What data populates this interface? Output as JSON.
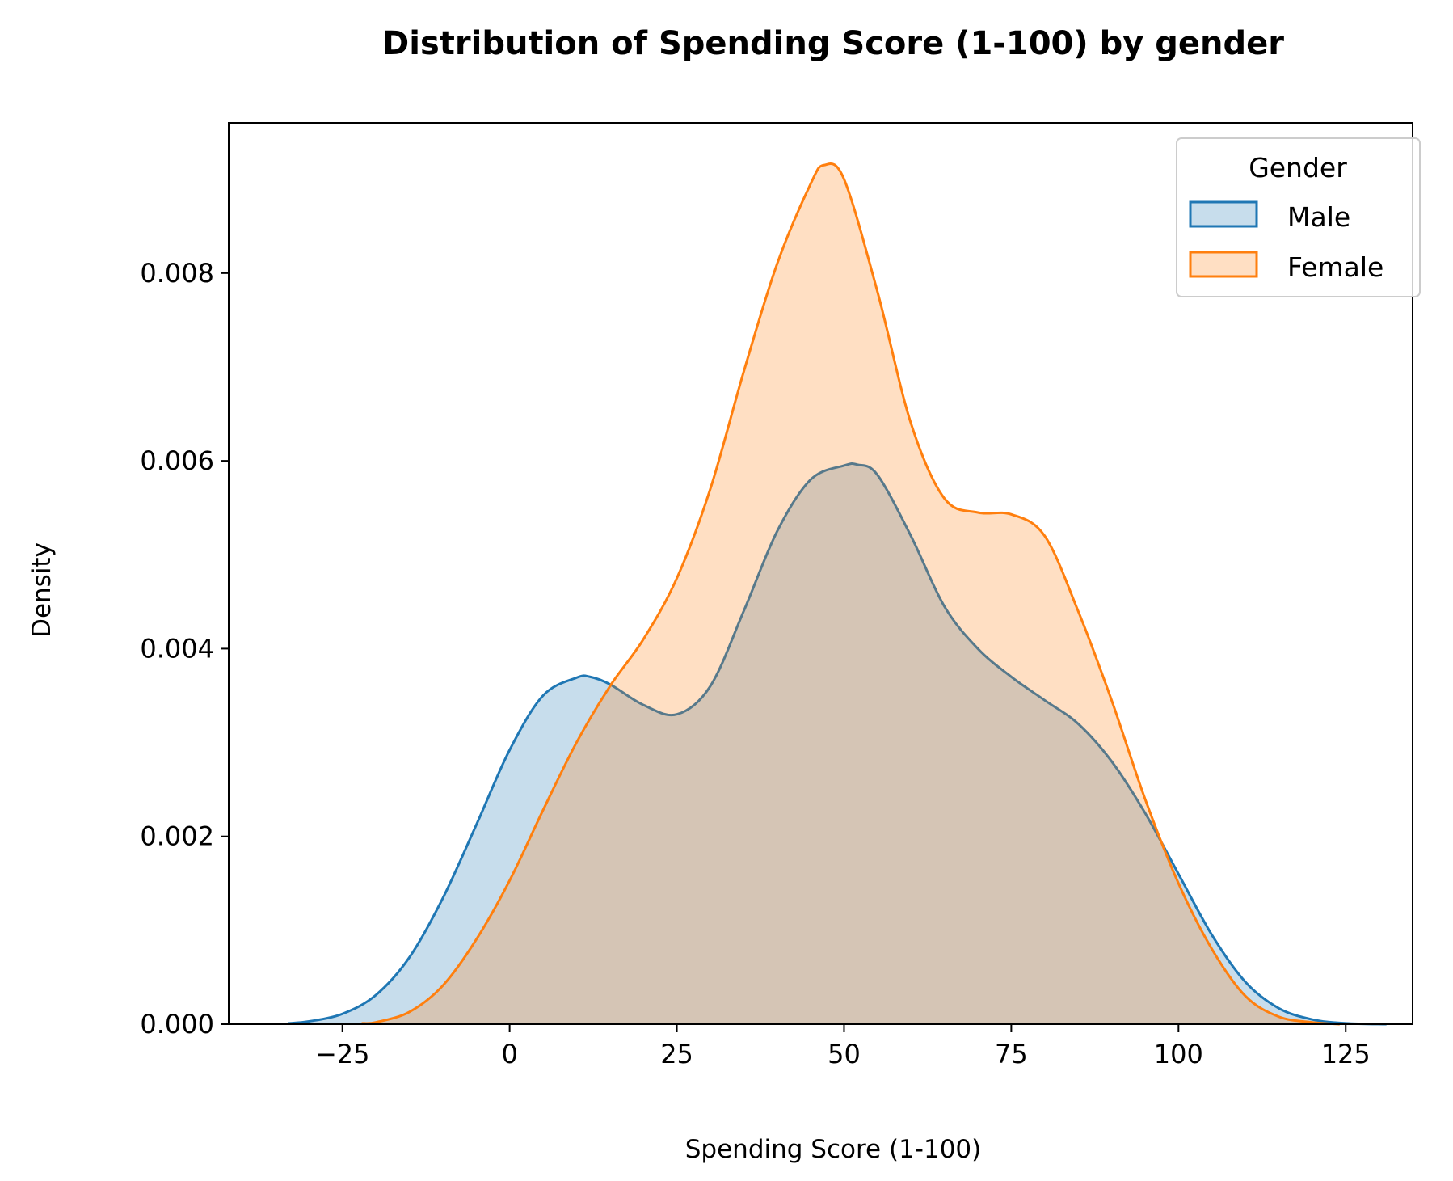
{
  "chart_data": {
    "type": "area",
    "title": "Distribution of Spending Score (1-100) by gender",
    "xlabel": "Spending Score (1-100)",
    "ylabel": "Density",
    "xlim": [
      -42,
      135
    ],
    "ylim": [
      0,
      0.0096
    ],
    "xticks": [
      -25,
      0,
      25,
      50,
      75,
      100,
      125
    ],
    "xtick_labels": [
      "−25",
      "0",
      "25",
      "50",
      "75",
      "100",
      "125"
    ],
    "yticks": [
      0,
      0.002,
      0.004,
      0.006,
      0.008
    ],
    "ytick_labels": [
      "0.000",
      "0.002",
      "0.004",
      "0.006",
      "0.008"
    ],
    "grid": false,
    "legend": {
      "title": "Gender",
      "position": "top-right"
    },
    "series": [
      {
        "name": "Male",
        "color": "#1f77b4",
        "fill_color": "#1f77b4",
        "fill_opacity": 0.25,
        "x": [
          -33,
          -30,
          -25,
          -20,
          -15,
          -10,
          -5,
          0,
          5,
          10,
          12,
          15,
          20,
          25,
          30,
          35,
          40,
          45,
          50,
          52,
          55,
          60,
          65,
          70,
          75,
          80,
          85,
          90,
          95,
          100,
          105,
          110,
          115,
          120,
          125,
          131
        ],
        "y": [
          1e-05,
          3e-05,
          0.00011,
          0.00031,
          0.00071,
          0.00134,
          0.00212,
          0.00292,
          0.0035,
          0.00369,
          0.0037,
          0.00362,
          0.0034,
          0.0033,
          0.0036,
          0.0044,
          0.00525,
          0.0058,
          0.00595,
          0.00596,
          0.00585,
          0.0052,
          0.00445,
          0.004,
          0.0037,
          0.00345,
          0.0032,
          0.0028,
          0.00225,
          0.0016,
          0.00095,
          0.00045,
          0.00017,
          5e-05,
          1e-05,
          0.0
        ]
      },
      {
        "name": "Female",
        "color": "#ff7f0e",
        "fill_color": "#ff7f0e",
        "fill_opacity": 0.25,
        "x": [
          -22,
          -20,
          -15,
          -10,
          -5,
          0,
          5,
          10,
          15,
          20,
          25,
          30,
          35,
          40,
          45,
          47,
          50,
          55,
          60,
          65,
          70,
          75,
          80,
          85,
          90,
          95,
          100,
          105,
          110,
          115,
          120,
          124
        ],
        "y": [
          1e-05,
          2e-05,
          0.00013,
          0.00041,
          0.0009,
          0.00153,
          0.00228,
          0.003,
          0.0036,
          0.0041,
          0.00475,
          0.0057,
          0.00695,
          0.0081,
          0.00895,
          0.00915,
          0.009,
          0.0078,
          0.0064,
          0.0056,
          0.00545,
          0.00543,
          0.0052,
          0.0044,
          0.00345,
          0.0024,
          0.0015,
          0.0008,
          0.0003,
          8e-05,
          2e-05,
          0.0
        ]
      }
    ]
  }
}
